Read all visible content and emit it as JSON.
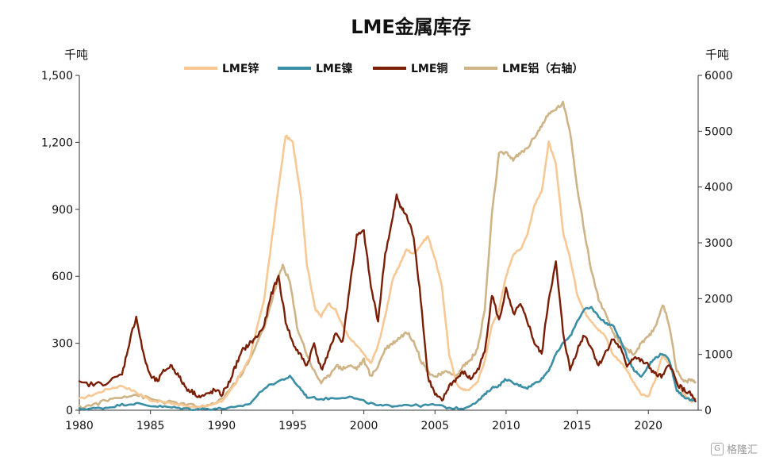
{
  "watermark": {
    "text": "格隆汇",
    "icon": "G"
  },
  "chart_data": {
    "type": "line",
    "title": "LME金属库存",
    "left_unit": "千吨",
    "right_unit": "千吨",
    "xlim": [
      1980,
      2023.5
    ],
    "ylim_left": [
      0,
      1500
    ],
    "ylim_right": [
      0,
      6000
    ],
    "x_ticks": [
      1980,
      1985,
      1990,
      1995,
      2000,
      2005,
      2010,
      2015,
      2020
    ],
    "y_ticks_left": [
      "0",
      "300",
      "600",
      "900",
      "1,200",
      "1,500"
    ],
    "y_ticks_left_values": [
      0,
      300,
      600,
      900,
      1200,
      1500
    ],
    "y_ticks_right": [
      "0",
      "1000",
      "2000",
      "3000",
      "4000",
      "5000",
      "6000"
    ],
    "y_ticks_right_values": [
      0,
      1000,
      2000,
      3000,
      4000,
      5000,
      6000
    ],
    "legend_position": "top",
    "series": [
      {
        "name": "LME锌",
        "axis": "left",
        "color": "#F8C894",
        "width": 2.6,
        "points": [
          [
            1980,
            50
          ],
          [
            1981,
            70
          ],
          [
            1982,
            95
          ],
          [
            1983,
            110
          ],
          [
            1984,
            80
          ],
          [
            1985,
            45
          ],
          [
            1986,
            35
          ],
          [
            1987,
            25
          ],
          [
            1988,
            15
          ],
          [
            1989,
            15
          ],
          [
            1990,
            40
          ],
          [
            1991,
            120
          ],
          [
            1992,
            240
          ],
          [
            1993,
            500
          ],
          [
            1993.8,
            900
          ],
          [
            1994.5,
            1230
          ],
          [
            1995,
            1200
          ],
          [
            1995.6,
            950
          ],
          [
            1996,
            650
          ],
          [
            1996.6,
            450
          ],
          [
            1997,
            420
          ],
          [
            1997.5,
            480
          ],
          [
            1998,
            450
          ],
          [
            1998.5,
            380
          ],
          [
            1999,
            320
          ],
          [
            1999.5,
            290
          ],
          [
            2000,
            250
          ],
          [
            2000.5,
            210
          ],
          [
            2001,
            290
          ],
          [
            2001.5,
            420
          ],
          [
            2002,
            580
          ],
          [
            2002.5,
            650
          ],
          [
            2003,
            720
          ],
          [
            2003.5,
            700
          ],
          [
            2004,
            740
          ],
          [
            2004.5,
            780
          ],
          [
            2005,
            680
          ],
          [
            2005.5,
            550
          ],
          [
            2006,
            250
          ],
          [
            2006.5,
            120
          ],
          [
            2007,
            90
          ],
          [
            2007.5,
            95
          ],
          [
            2008,
            130
          ],
          [
            2008.5,
            220
          ],
          [
            2009,
            380
          ],
          [
            2009.5,
            450
          ],
          [
            2010,
            600
          ],
          [
            2010.5,
            700
          ],
          [
            2011,
            720
          ],
          [
            2011.5,
            790
          ],
          [
            2012,
            920
          ],
          [
            2012.5,
            980
          ],
          [
            2013,
            1200
          ],
          [
            2013.5,
            1100
          ],
          [
            2014,
            800
          ],
          [
            2014.5,
            680
          ],
          [
            2015,
            520
          ],
          [
            2015.5,
            440
          ],
          [
            2016,
            400
          ],
          [
            2016.5,
            360
          ],
          [
            2017,
            330
          ],
          [
            2017.5,
            250
          ],
          [
            2018,
            220
          ],
          [
            2018.5,
            180
          ],
          [
            2019,
            120
          ],
          [
            2019.5,
            70
          ],
          [
            2020,
            60
          ],
          [
            2020.5,
            140
          ],
          [
            2021,
            250
          ],
          [
            2021.5,
            200
          ],
          [
            2022,
            130
          ],
          [
            2022.5,
            70
          ],
          [
            2023,
            40
          ],
          [
            2023.3,
            50
          ]
        ]
      },
      {
        "name": "LME镍",
        "axis": "left",
        "color": "#3A8EA5",
        "width": 2.6,
        "points": [
          [
            1980,
            5
          ],
          [
            1981,
            8
          ],
          [
            1982,
            12
          ],
          [
            1983,
            25
          ],
          [
            1984,
            30
          ],
          [
            1985,
            20
          ],
          [
            1986,
            15
          ],
          [
            1987,
            10
          ],
          [
            1988,
            5
          ],
          [
            1989,
            6
          ],
          [
            1990,
            8
          ],
          [
            1991,
            12
          ],
          [
            1992,
            30
          ],
          [
            1993,
            100
          ],
          [
            1994,
            130
          ],
          [
            1994.8,
            150
          ],
          [
            1995.5,
            100
          ],
          [
            1996,
            60
          ],
          [
            1997,
            50
          ],
          [
            1998,
            55
          ],
          [
            1999,
            60
          ],
          [
            2000,
            40
          ],
          [
            2001,
            20
          ],
          [
            2002,
            20
          ],
          [
            2003,
            25
          ],
          [
            2004,
            20
          ],
          [
            2005,
            25
          ],
          [
            2006,
            10
          ],
          [
            2007,
            8
          ],
          [
            2008,
            40
          ],
          [
            2008.5,
            70
          ],
          [
            2009,
            100
          ],
          [
            2009.5,
            110
          ],
          [
            2010,
            140
          ],
          [
            2010.5,
            120
          ],
          [
            2011,
            110
          ],
          [
            2011.5,
            100
          ],
          [
            2012,
            120
          ],
          [
            2012.5,
            140
          ],
          [
            2013,
            180
          ],
          [
            2013.5,
            250
          ],
          [
            2014,
            300
          ],
          [
            2014.5,
            330
          ],
          [
            2015,
            400
          ],
          [
            2015.5,
            450
          ],
          [
            2016,
            460
          ],
          [
            2016.5,
            420
          ],
          [
            2017,
            390
          ],
          [
            2017.5,
            380
          ],
          [
            2018,
            320
          ],
          [
            2018.5,
            240
          ],
          [
            2019,
            180
          ],
          [
            2019.5,
            150
          ],
          [
            2020,
            200
          ],
          [
            2020.5,
            235
          ],
          [
            2021,
            255
          ],
          [
            2021.5,
            220
          ],
          [
            2022,
            90
          ],
          [
            2022.5,
            60
          ],
          [
            2023,
            45
          ],
          [
            2023.3,
            40
          ]
        ]
      },
      {
        "name": "LME铜",
        "axis": "left",
        "color": "#7A1E06",
        "width": 2.4,
        "points": [
          [
            1980,
            120
          ],
          [
            1981,
            115
          ],
          [
            1982,
            125
          ],
          [
            1983,
            160
          ],
          [
            1983.5,
            300
          ],
          [
            1984,
            420
          ],
          [
            1984.5,
            250
          ],
          [
            1985,
            150
          ],
          [
            1985.5,
            130
          ],
          [
            1986,
            180
          ],
          [
            1986.5,
            200
          ],
          [
            1987,
            150
          ],
          [
            1987.5,
            100
          ],
          [
            1988,
            80
          ],
          [
            1988.5,
            60
          ],
          [
            1989,
            70
          ],
          [
            1989.5,
            90
          ],
          [
            1990,
            70
          ],
          [
            1990.5,
            120
          ],
          [
            1991,
            200
          ],
          [
            1991.5,
            270
          ],
          [
            1992,
            300
          ],
          [
            1992.5,
            330
          ],
          [
            1993,
            380
          ],
          [
            1993.5,
            520
          ],
          [
            1994,
            600
          ],
          [
            1994.5,
            400
          ],
          [
            1995,
            300
          ],
          [
            1995.5,
            250
          ],
          [
            1996,
            200
          ],
          [
            1996.5,
            300
          ],
          [
            1997,
            180
          ],
          [
            1997.5,
            250
          ],
          [
            1998,
            350
          ],
          [
            1998.5,
            300
          ],
          [
            1999,
            550
          ],
          [
            1999.5,
            780
          ],
          [
            2000,
            800
          ],
          [
            2000.5,
            550
          ],
          [
            2001,
            400
          ],
          [
            2001.5,
            700
          ],
          [
            2002,
            850
          ],
          [
            2002.3,
            960
          ],
          [
            2002.7,
            900
          ],
          [
            2003,
            870
          ],
          [
            2003.5,
            780
          ],
          [
            2004,
            500
          ],
          [
            2004.5,
            150
          ],
          [
            2005,
            70
          ],
          [
            2005.5,
            40
          ],
          [
            2006,
            110
          ],
          [
            2006.5,
            140
          ],
          [
            2007,
            170
          ],
          [
            2007.5,
            140
          ],
          [
            2008,
            180
          ],
          [
            2008.5,
            260
          ],
          [
            2009,
            520
          ],
          [
            2009.5,
            400
          ],
          [
            2010,
            540
          ],
          [
            2010.5,
            430
          ],
          [
            2011,
            470
          ],
          [
            2011.5,
            400
          ],
          [
            2012,
            300
          ],
          [
            2012.5,
            250
          ],
          [
            2013,
            500
          ],
          [
            2013.5,
            660
          ],
          [
            2014,
            350
          ],
          [
            2014.5,
            180
          ],
          [
            2015,
            270
          ],
          [
            2015.5,
            340
          ],
          [
            2016,
            280
          ],
          [
            2016.5,
            200
          ],
          [
            2017,
            260
          ],
          [
            2017.5,
            320
          ],
          [
            2018,
            280
          ],
          [
            2018.5,
            200
          ],
          [
            2019,
            240
          ],
          [
            2019.5,
            220
          ],
          [
            2020,
            200
          ],
          [
            2020.5,
            160
          ],
          [
            2021,
            150
          ],
          [
            2021.5,
            210
          ],
          [
            2022,
            120
          ],
          [
            2022.5,
            90
          ],
          [
            2023,
            70
          ],
          [
            2023.3,
            40
          ]
        ]
      },
      {
        "name": "LME铝（右轴）",
        "axis": "right",
        "color": "#CFB487",
        "width": 2.6,
        "points": [
          [
            1980,
            50
          ],
          [
            1981,
            100
          ],
          [
            1982,
            180
          ],
          [
            1983,
            250
          ],
          [
            1984,
            280
          ],
          [
            1985,
            200
          ],
          [
            1986,
            150
          ],
          [
            1987,
            120
          ],
          [
            1988,
            80
          ],
          [
            1989,
            60
          ],
          [
            1990,
            200
          ],
          [
            1991,
            500
          ],
          [
            1992,
            900
          ],
          [
            1993,
            1500
          ],
          [
            1993.8,
            2200
          ],
          [
            1994.3,
            2600
          ],
          [
            1994.8,
            2300
          ],
          [
            1995.3,
            1500
          ],
          [
            1996,
            1000
          ],
          [
            1996.5,
            700
          ],
          [
            1997,
            500
          ],
          [
            1997.5,
            600
          ],
          [
            1998,
            800
          ],
          [
            1998.5,
            750
          ],
          [
            1999,
            800
          ],
          [
            1999.5,
            750
          ],
          [
            2000,
            900
          ],
          [
            2000.5,
            600
          ],
          [
            2001,
            800
          ],
          [
            2001.5,
            1100
          ],
          [
            2002,
            1200
          ],
          [
            2002.5,
            1300
          ],
          [
            2003,
            1400
          ],
          [
            2003.5,
            1250
          ],
          [
            2004,
            900
          ],
          [
            2004.5,
            700
          ],
          [
            2005,
            600
          ],
          [
            2005.5,
            650
          ],
          [
            2006,
            700
          ],
          [
            2006.5,
            600
          ],
          [
            2007,
            800
          ],
          [
            2007.5,
            900
          ],
          [
            2008,
            1100
          ],
          [
            2008.5,
            1800
          ],
          [
            2009,
            3500
          ],
          [
            2009.5,
            4600
          ],
          [
            2010,
            4600
          ],
          [
            2010.5,
            4500
          ],
          [
            2011,
            4600
          ],
          [
            2011.5,
            4700
          ],
          [
            2012,
            4900
          ],
          [
            2012.5,
            5100
          ],
          [
            2013,
            5300
          ],
          [
            2013.5,
            5400
          ],
          [
            2014,
            5500
          ],
          [
            2014.5,
            5000
          ],
          [
            2015,
            4000
          ],
          [
            2015.5,
            3200
          ],
          [
            2016,
            2500
          ],
          [
            2016.5,
            2000
          ],
          [
            2017,
            1700
          ],
          [
            2017.5,
            1400
          ],
          [
            2018,
            1200
          ],
          [
            2018.5,
            1100
          ],
          [
            2019,
            1000
          ],
          [
            2019.5,
            1200
          ],
          [
            2020,
            1300
          ],
          [
            2020.5,
            1500
          ],
          [
            2021,
            1900
          ],
          [
            2021.5,
            1500
          ],
          [
            2022,
            700
          ],
          [
            2022.5,
            500
          ],
          [
            2023,
            550
          ],
          [
            2023.3,
            500
          ]
        ]
      }
    ]
  }
}
